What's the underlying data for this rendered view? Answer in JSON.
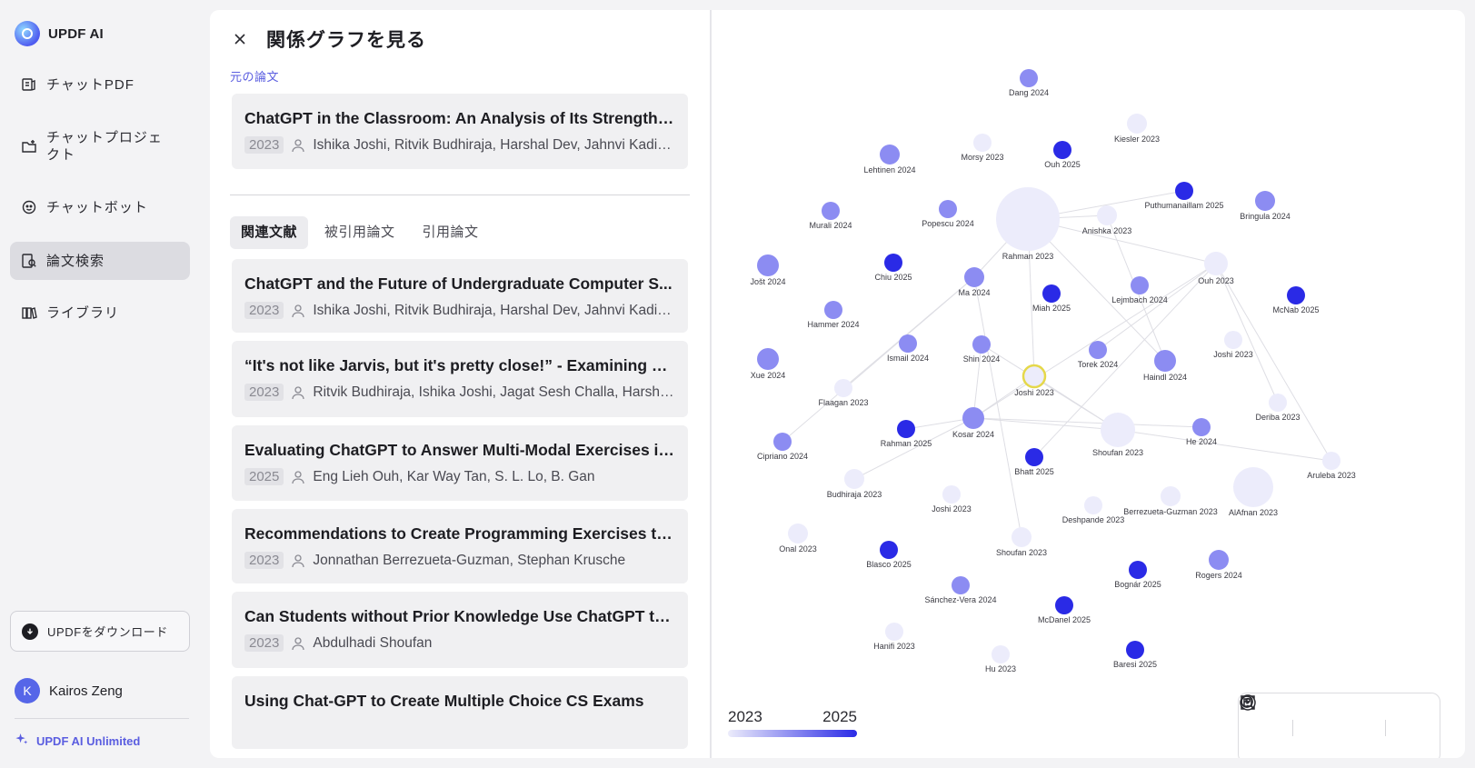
{
  "brand": {
    "name": "UPDF AI"
  },
  "sidebar": {
    "items": [
      {
        "label": "チャットPDF",
        "icon": "chat-pdf-icon"
      },
      {
        "label": "チャットプロジェクト",
        "icon": "folder-icon"
      },
      {
        "label": "チャットボット",
        "icon": "chatbot-icon"
      },
      {
        "label": "論文検索",
        "icon": "paper-search-icon"
      },
      {
        "label": "ライブラリ",
        "icon": "library-icon"
      }
    ],
    "download_label": "UPDFをダウンロード",
    "user_initial": "K",
    "user_name": "Kairos Zeng",
    "unlimited_label": "UPDF AI Unlimited"
  },
  "panel": {
    "title": "関係グラフを見る",
    "source_label": "元の論文",
    "source": {
      "title": "ChatGPT in the Classroom: An Analysis of Its Strengths ...",
      "year": "2023",
      "authors": "Ishika Joshi, Ritvik Budhiraja, Harshal Dev, Jahnvi Kadia, ..."
    },
    "tabs": [
      "関連文献",
      "被引用論文",
      "引用論文"
    ],
    "papers": [
      {
        "title": "ChatGPT and the Future of Undergraduate Computer S...",
        "year": "2023",
        "authors": "Ishika Joshi, Ritvik Budhiraja, Harshal Dev, Jahnvi Kadia, ..."
      },
      {
        "title": "“It's not like Jarvis, but it's pretty close!” - Examining C...",
        "year": "2023",
        "authors": "Ritvik Budhiraja, Ishika Joshi, Jagat Sesh Challa, Harshal..."
      },
      {
        "title": "Evaluating ChatGPT to Answer Multi-Modal Exercises in...",
        "year": "2025",
        "authors": "Eng Lieh Ouh, Kar Way Tan, S. L. Lo, B. Gan"
      },
      {
        "title": "Recommendations to Create Programming Exercises to ...",
        "year": "2023",
        "authors": "Jonnathan Berrezueta-Guzman, Stephan Krusche"
      },
      {
        "title": "Can Students without Prior Knowledge Use ChatGPT to ...",
        "year": "2023",
        "authors": "Abdulhadi Shoufan"
      },
      {
        "title": "Using Chat-GPT to Create Multiple Choice CS Exams",
        "year": "",
        "authors": ""
      }
    ]
  },
  "graph": {
    "legend_min": "2023",
    "legend_max": "2025",
    "colors": {
      "y2023": "#ececfb",
      "y2024": "#8c8cf2",
      "y2025": "#2a2ae6",
      "highlight": "#e5d84a",
      "edge": "#dedee4"
    },
    "nodes": [
      {
        "label": "Dang 2024",
        "year": 2024
      },
      {
        "label": "Kiesler 2023",
        "year": 2023
      },
      {
        "label": "Lehtinen 2024",
        "year": 2024
      },
      {
        "label": "Morsy 2023",
        "year": 2023
      },
      {
        "label": "Ouh 2025",
        "year": 2025
      },
      {
        "label": "Puthumanaillam 2025",
        "year": 2025
      },
      {
        "label": "Bringula 2024",
        "year": 2024
      },
      {
        "label": "Murali 2024",
        "year": 2024
      },
      {
        "label": "Popescu 2024",
        "year": 2024
      },
      {
        "label": "Rahman 2023",
        "year": 2023
      },
      {
        "label": "Anishka 2023",
        "year": 2023
      },
      {
        "label": "Jošt 2024",
        "year": 2024
      },
      {
        "label": "Chiu 2025",
        "year": 2025
      },
      {
        "label": "Ma 2024",
        "year": 2024
      },
      {
        "label": "Miah 2025",
        "year": 2025
      },
      {
        "label": "Lejmbach 2024",
        "year": 2024
      },
      {
        "label": "Ouh 2023",
        "year": 2023
      },
      {
        "label": "McNab 2025",
        "year": 2025
      },
      {
        "label": "Hammer 2024",
        "year": 2024
      },
      {
        "label": "Ismail 2024",
        "year": 2024
      },
      {
        "label": "Shin 2024",
        "year": 2024
      },
      {
        "label": "Torek 2024",
        "year": 2024
      },
      {
        "label": "Haindl 2024",
        "year": 2024
      },
      {
        "label": "Joshi 2023",
        "year": 2023
      },
      {
        "label": "Xue 2024",
        "year": 2024
      },
      {
        "label": "Flaagan 2023",
        "year": 2023
      },
      {
        "label": "Joshi 2023",
        "year": 2023
      },
      {
        "label": "Deriba 2023",
        "year": 2023
      },
      {
        "label": "Rahman 2025",
        "year": 2025
      },
      {
        "label": "Kosar 2024",
        "year": 2024
      },
      {
        "label": "Shoufan 2023",
        "year": 2023
      },
      {
        "label": "He 2024",
        "year": 2024
      },
      {
        "label": "Cipriano 2024",
        "year": 2024
      },
      {
        "label": "Bhatt 2025",
        "year": 2025
      },
      {
        "label": "Aruleba 2023",
        "year": 2023
      },
      {
        "label": "Budhiraja 2023",
        "year": 2023
      },
      {
        "label": "Joshi 2023",
        "year": 2023
      },
      {
        "label": "Deshpande 2023",
        "year": 2023
      },
      {
        "label": "Berrezueta-Guzman 2023",
        "year": 2023
      },
      {
        "label": "AlAfnan 2023",
        "year": 2023
      },
      {
        "label": "Onal 2023",
        "year": 2023
      },
      {
        "label": "Blasco 2025",
        "year": 2025
      },
      {
        "label": "Shoufan 2023",
        "year": 2023
      },
      {
        "label": "Bognár 2025",
        "year": 2025
      },
      {
        "label": "Rogers 2024",
        "year": 2024
      },
      {
        "label": "Sánchez-Vera 2024",
        "year": 2024
      },
      {
        "label": "McDanel 2025",
        "year": 2025
      },
      {
        "label": "Hanifi 2023",
        "year": 2023
      },
      {
        "label": "Hu 2023",
        "year": 2023
      },
      {
        "label": "Baresi 2025",
        "year": 2025
      }
    ]
  }
}
